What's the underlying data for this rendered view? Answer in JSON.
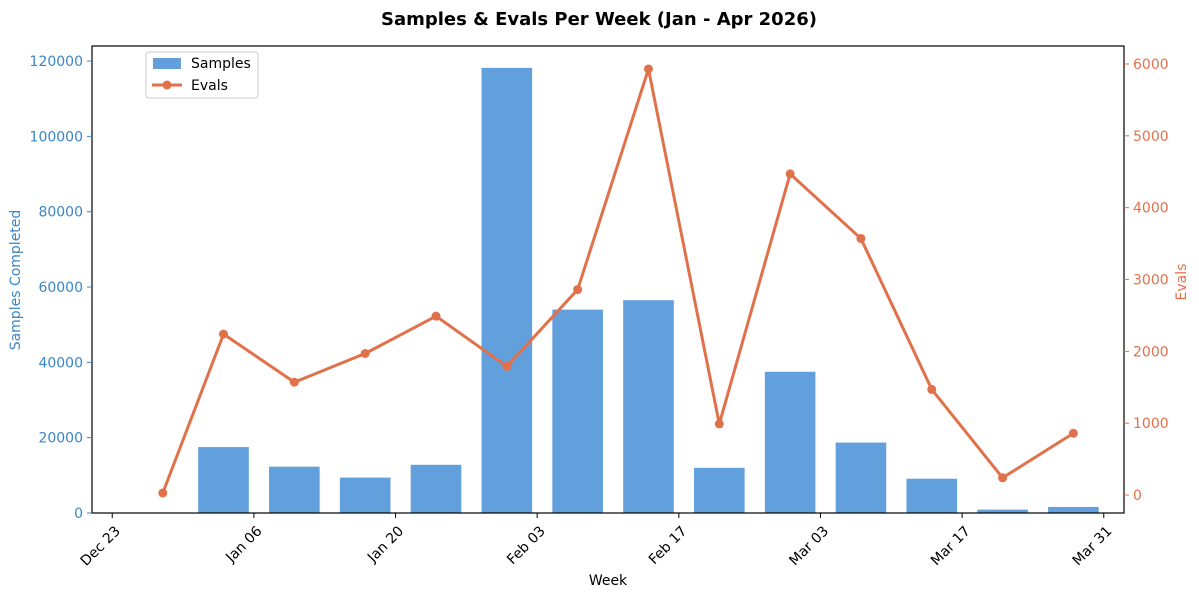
{
  "chart_data": {
    "type": "bar+line",
    "title": "Samples & Evals Per Week (Jan - Apr 2026)",
    "xlabel": "Week",
    "ylabel_left": "Samples Completed",
    "ylabel_right": "Evals",
    "x_start_date": "2025-12-23",
    "x_end_date": "2026-04-04",
    "xtick_labels": [
      "Dec 23",
      "Jan 06",
      "Jan 20",
      "Feb 03",
      "Feb 17",
      "Mar 03",
      "Mar 17",
      "Mar 31"
    ],
    "ylim_left": [
      0,
      124000
    ],
    "yticks_left": [
      "0",
      "20000",
      "40000",
      "60000",
      "80000",
      "100000",
      "120000"
    ],
    "ylim_right": [
      -250,
      6250
    ],
    "yticks_right": [
      "0",
      "1000",
      "2000",
      "3000",
      "4000",
      "5000",
      "6000"
    ],
    "legend_position": "top-left",
    "series": [
      {
        "name": "Samples",
        "type": "bar",
        "color": "#629fdd",
        "x": [
          "2025-12-30",
          "2026-01-05",
          "2026-01-12",
          "2026-01-19",
          "2026-01-26",
          "2026-02-02",
          "2026-02-09",
          "2026-02-16",
          "2026-02-23",
          "2026-03-02",
          "2026-03-09",
          "2026-03-16",
          "2026-03-23",
          "2026-03-30"
        ],
        "values": [
          0,
          17500,
          12300,
          9400,
          12800,
          118200,
          54000,
          56500,
          12000,
          37500,
          18700,
          9100,
          900,
          1600
        ]
      },
      {
        "name": "Evals",
        "type": "line",
        "color": "#e0714b",
        "x": [
          "2025-12-30",
          "2026-01-05",
          "2026-01-12",
          "2026-01-19",
          "2026-01-26",
          "2026-02-02",
          "2026-02-09",
          "2026-02-16",
          "2026-02-23",
          "2026-03-02",
          "2026-03-09",
          "2026-03-16",
          "2026-03-23",
          "2026-03-30"
        ],
        "values": [
          30,
          2240,
          1570,
          1970,
          2490,
          1790,
          2860,
          5930,
          990,
          4470,
          3570,
          1470,
          240,
          860
        ]
      }
    ],
    "colors": {
      "left_axis": "#3a86c8",
      "right_axis": "#e0714b",
      "frame": "#000000"
    }
  }
}
